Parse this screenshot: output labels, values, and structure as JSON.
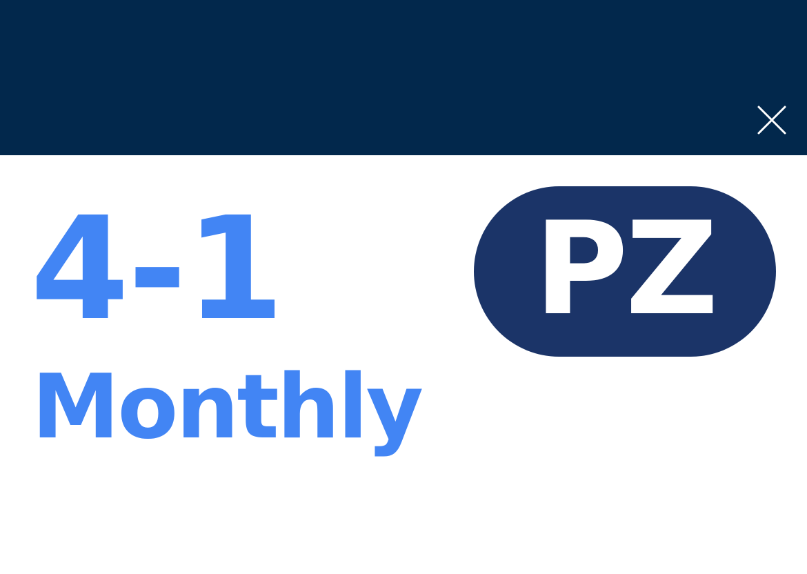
{
  "header": {
    "background_color": "#02284c",
    "close_icon": "close-icon"
  },
  "route": {
    "number": "4-1",
    "frequency": "Monthly",
    "text_color": "#4285f4"
  },
  "zone_badge": {
    "label": "PZ",
    "background_color": "#1b3468",
    "text_color": "#ffffff"
  }
}
